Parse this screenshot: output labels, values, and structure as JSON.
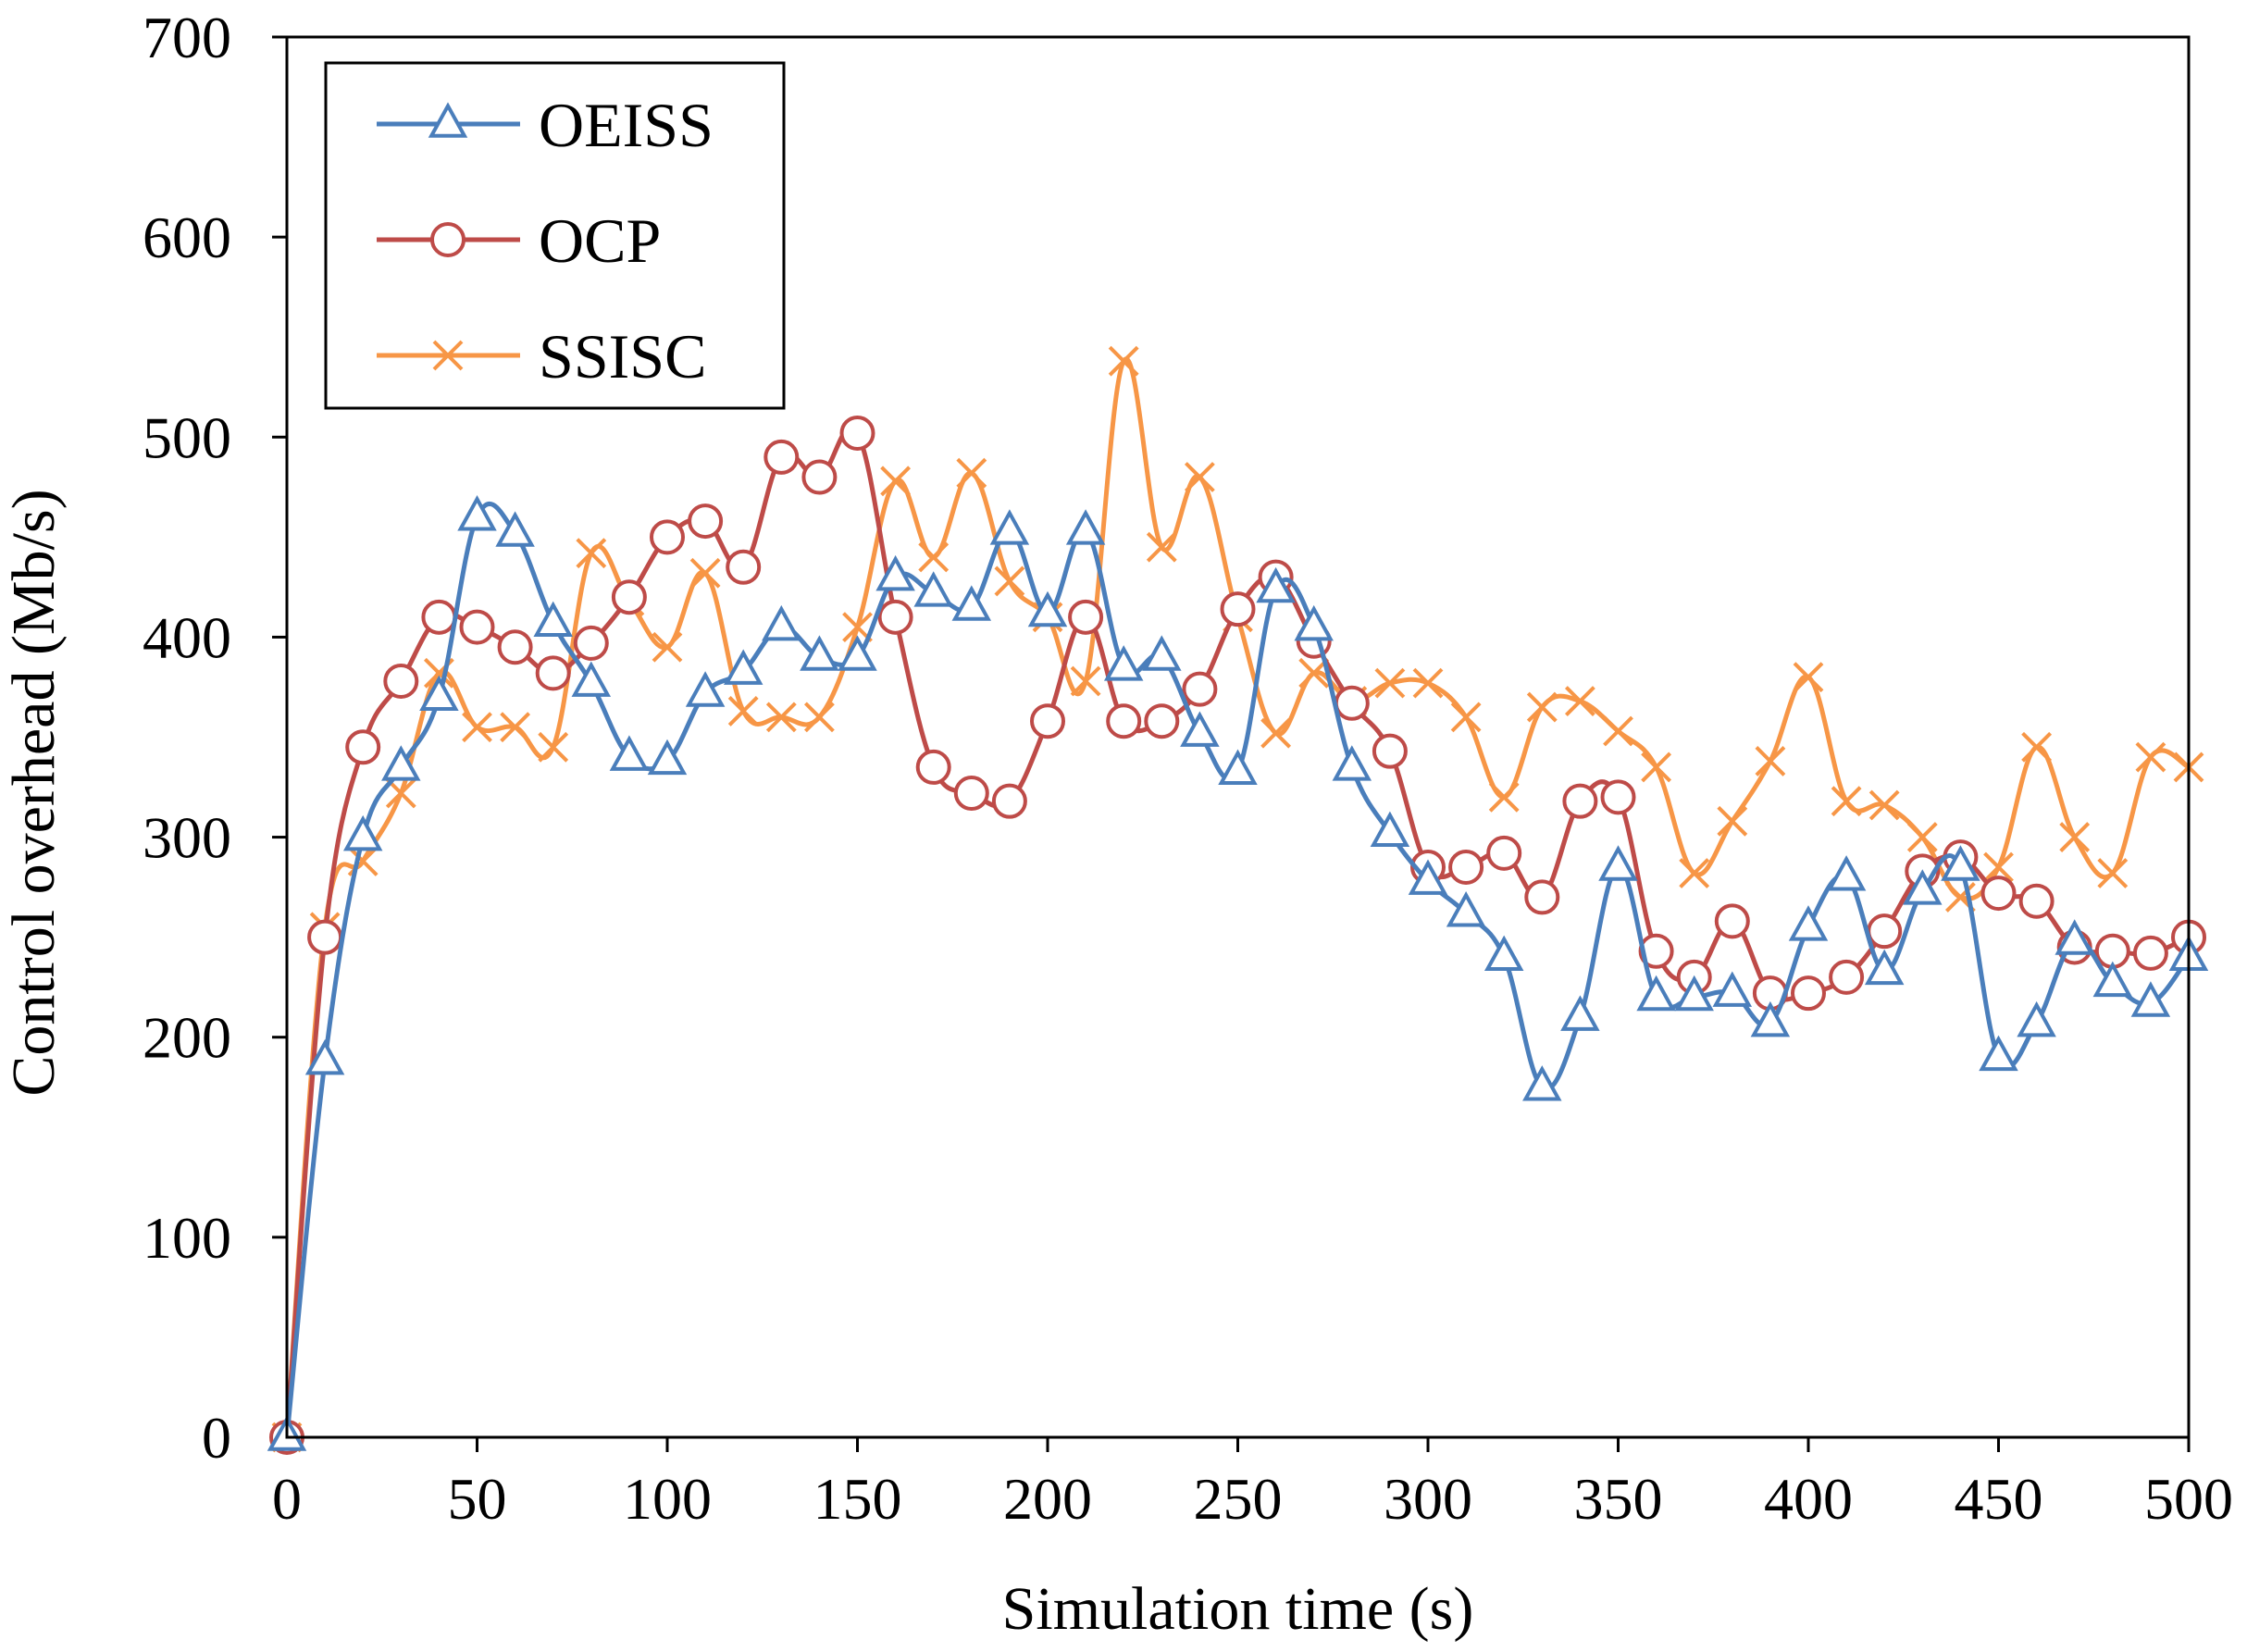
{
  "chart_data": {
    "type": "line",
    "title": "",
    "xlabel": "Simulation time (s)",
    "ylabel": "Control overhead (Mb/s)",
    "xlim": [
      0,
      500
    ],
    "ylim": [
      0,
      700
    ],
    "xticks": [
      0,
      50,
      100,
      150,
      200,
      250,
      300,
      350,
      400,
      450,
      500
    ],
    "yticks": [
      0,
      100,
      200,
      300,
      400,
      500,
      600,
      700
    ],
    "grid": false,
    "legend_position": "top-left",
    "x": [
      0,
      10,
      20,
      30,
      40,
      50,
      60,
      70,
      80,
      90,
      100,
      110,
      120,
      130,
      140,
      150,
      160,
      170,
      180,
      190,
      200,
      210,
      220,
      230,
      240,
      250,
      260,
      270,
      280,
      290,
      300,
      310,
      320,
      330,
      340,
      350,
      360,
      370,
      380,
      390,
      400,
      410,
      420,
      430,
      440,
      450,
      460,
      470,
      480,
      490,
      500
    ],
    "series": [
      {
        "name": "OEISS",
        "color": "#4a7ebb",
        "marker": "triangle",
        "values": [
          0,
          188,
          300,
          335,
          370,
          460,
          452,
          407,
          377,
          340,
          338,
          372,
          383,
          405,
          390,
          390,
          430,
          422,
          415,
          453,
          412,
          453,
          385,
          390,
          352,
          333,
          424,
          405,
          335,
          302,
          278,
          262,
          240,
          175,
          210,
          285,
          220,
          220,
          222,
          207,
          255,
          280,
          233,
          273,
          285,
          190,
          207,
          248,
          227,
          217,
          240
        ]
      },
      {
        "name": "OCP",
        "color": "#be4b48",
        "marker": "circle",
        "values": [
          0,
          250,
          345,
          378,
          410,
          405,
          395,
          382,
          397,
          420,
          450,
          458,
          435,
          490,
          480,
          502,
          410,
          335,
          322,
          318,
          358,
          410,
          358,
          358,
          374,
          414,
          430,
          398,
          367,
          343,
          285,
          285,
          292,
          270,
          318,
          320,
          243,
          230,
          258,
          222,
          222,
          230,
          253,
          283,
          290,
          272,
          268,
          245,
          243,
          242,
          250
        ]
      },
      {
        "name": "SSISC",
        "color": "#f79646",
        "marker": "x",
        "values": [
          0,
          255,
          288,
          322,
          382,
          355,
          355,
          345,
          442,
          418,
          395,
          432,
          363,
          360,
          360,
          405,
          478,
          440,
          482,
          428,
          410,
          378,
          538,
          445,
          480,
          410,
          352,
          382,
          368,
          377,
          377,
          360,
          320,
          365,
          368,
          353,
          335,
          282,
          308,
          338,
          380,
          318,
          316,
          300,
          270,
          285,
          345,
          300,
          282,
          340,
          335
        ]
      }
    ]
  }
}
